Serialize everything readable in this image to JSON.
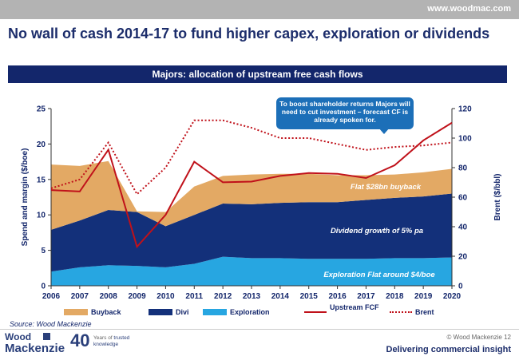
{
  "header": {
    "url": "www.woodmac.com"
  },
  "page_title": "No wall of cash 2014-17 to fund higher capex, exploration or dividends",
  "banner": "Majors: allocation of upstream free cash flows",
  "callout": "To boost shareholder returns Majors will need to cut investment – forecast CF is already spoken for.",
  "source": "Source: Wood Mackenzie",
  "footer": {
    "logo_line1": "Wood",
    "logo_line2": "Mackenzie",
    "years": "40",
    "years_text_1": "Years of ",
    "years_text_2": "trusted",
    "years_text_3": "knowledge",
    "copyright": "© Wood Mackenzie  12",
    "tagline": "Delivering commercial insight"
  },
  "colors": {
    "buyback": "#e3a964",
    "divi": "#13307a",
    "exploration": "#27a6e1",
    "fcf": "#c0111a",
    "brent": "#c0111a",
    "axis_text": "#13266b"
  },
  "chart_data": {
    "type": "area",
    "x": [
      "2006",
      "2007",
      "2008",
      "2009",
      "2010",
      "2011",
      "2012",
      "2013",
      "2014",
      "2015",
      "2016",
      "2017",
      "2018",
      "2019",
      "2020"
    ],
    "ylabel": "Spend and margin ($/boe)",
    "y2label": "Brent ($/bbl)",
    "ylim": [
      0,
      25
    ],
    "y2lim": [
      0,
      120
    ],
    "yticks": [
      "0",
      "5",
      "10",
      "15",
      "20",
      "25"
    ],
    "y2ticks": [
      "0",
      "20",
      "40",
      "60",
      "80",
      "100",
      "120"
    ],
    "series": [
      {
        "name": "Exploration",
        "kind": "area",
        "axis": "left",
        "values": [
          2.0,
          2.6,
          2.9,
          2.8,
          2.6,
          3.1,
          4.1,
          3.9,
          3.9,
          3.8,
          3.8,
          3.8,
          3.9,
          3.9,
          4.0
        ]
      },
      {
        "name": "Divi",
        "kind": "area",
        "axis": "left",
        "values": [
          5.9,
          6.6,
          7.8,
          7.6,
          5.8,
          6.9,
          7.5,
          7.6,
          7.8,
          8.0,
          8.0,
          8.3,
          8.5,
          8.7,
          9.0
        ]
      },
      {
        "name": "Buyback",
        "kind": "area",
        "axis": "left",
        "values": [
          9.2,
          7.7,
          6.9,
          0.1,
          2.0,
          4.0,
          3.9,
          4.2,
          4.1,
          4.0,
          3.8,
          3.5,
          3.3,
          3.4,
          3.5
        ]
      },
      {
        "name": "Upstream FCF",
        "kind": "line",
        "axis": "left",
        "values": [
          13.5,
          13.3,
          19.2,
          5.5,
          10.0,
          17.5,
          14.6,
          14.7,
          15.5,
          15.9,
          15.8,
          15.2,
          17.0,
          20.5,
          23.0
        ]
      },
      {
        "name": "Brent",
        "kind": "dotted",
        "axis": "right",
        "values": [
          66,
          72,
          97,
          62,
          80,
          112,
          112,
          107,
          100,
          100,
          96,
          92,
          94,
          95,
          97
        ]
      }
    ],
    "annotations": [
      {
        "text": "Flat $28bn buyback",
        "x": "2018",
        "y": 14.0
      },
      {
        "text": "Dividend growth of 5% pa",
        "x": "2017.5",
        "y": 7.8
      },
      {
        "text": "Exploration  Flat around $4/boe",
        "x": "2016.5",
        "y": 1.6
      }
    ],
    "legend": [
      {
        "label": "Buyback",
        "kind": "box",
        "color": "#e3a964"
      },
      {
        "label": "Divi",
        "kind": "box",
        "color": "#13307a"
      },
      {
        "label": "Exploration",
        "kind": "box",
        "color": "#27a6e1"
      },
      {
        "label": "Upstream FCF",
        "kind": "line",
        "color": "#c0111a"
      },
      {
        "label": "Brent",
        "kind": "dotted",
        "color": "#c0111a"
      }
    ]
  }
}
